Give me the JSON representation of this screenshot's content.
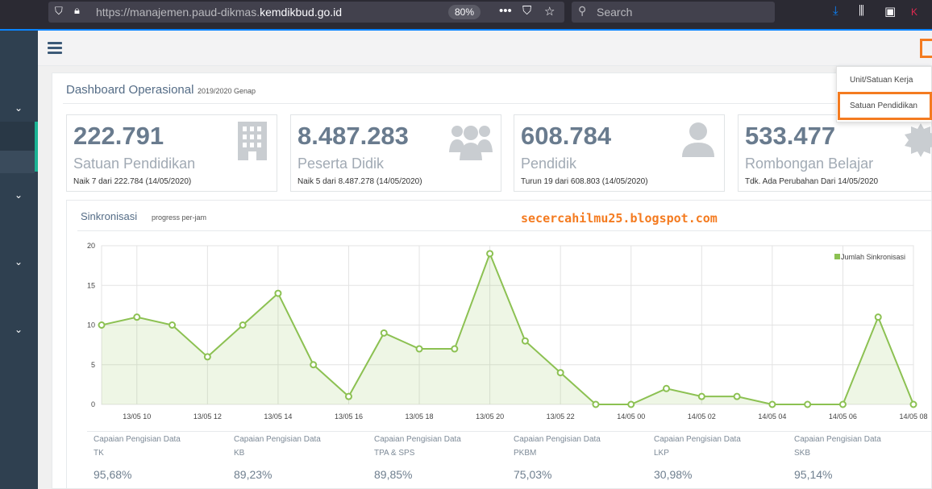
{
  "browser": {
    "url_prefix": "https://manajemen.paud-dikmas.",
    "url_domain": "kemdikbud.go.id",
    "zoom": "80%",
    "search_placeholder": "Search"
  },
  "dashboard": {
    "title": "Dashboard Operasional",
    "period": "2019/2020 Genap"
  },
  "cards": [
    {
      "value": "222.791",
      "label": "Satuan Pendidikan",
      "note": "Naik 7 dari 222.784 (14/05/2020)"
    },
    {
      "value": "8.487.283",
      "label": "Peserta Didik",
      "note": "Naik 5 dari 8.487.278 (14/05/2020)"
    },
    {
      "value": "608.784",
      "label": "Pendidik",
      "note": "Turun 19 dari 608.803 (14/05/2020)"
    },
    {
      "value": "533.477",
      "label": "Rombongan Belajar",
      "note": "Tdk. Ada Perubahan Dari 14/05/2020"
    }
  ],
  "dropdown": {
    "items": [
      "Unit/Satuan Kerja",
      "Satuan Pendidikan"
    ]
  },
  "sync": {
    "title": "Sinkronisasi",
    "subtitle": "progress per-jam",
    "watermark": "secercahilmu25.blogspot.com"
  },
  "chart_data": {
    "type": "area",
    "title": "Sinkronisasi",
    "ylim": [
      0,
      20
    ],
    "yticks": [
      "0",
      "5",
      "10",
      "15",
      "20"
    ],
    "xtick_labels": [
      "13/05 10",
      "13/05 12",
      "13/05 14",
      "13/05 16",
      "13/05 18",
      "13/05 20",
      "13/05 22",
      "14/05 00",
      "14/05 02",
      "14/05 04",
      "14/05 06",
      "14/05 08"
    ],
    "series": [
      {
        "name": "Jumlah Sinkronisasi",
        "color": "#8cc152",
        "values": [
          10,
          11,
          10,
          6,
          10,
          14,
          5,
          1,
          9,
          7,
          7,
          19,
          8,
          4,
          0,
          0,
          2,
          1,
          1,
          0,
          0,
          0,
          11,
          0
        ]
      }
    ]
  },
  "stats": [
    {
      "line1": "Capaian Pengisian Data",
      "line2": "TK",
      "pct": "95,68%"
    },
    {
      "line1": "Capaian Pengisian Data",
      "line2": "KB",
      "pct": "89,23%"
    },
    {
      "line1": "Capaian Pengisian Data",
      "line2": "TPA & SPS",
      "pct": "89,85%"
    },
    {
      "line1": "Capaian Pengisian Data",
      "line2": "PKBM",
      "pct": "75,03%"
    },
    {
      "line1": "Capaian Pengisian Data",
      "line2": "LKP",
      "pct": "30,98%"
    },
    {
      "line1": "Capaian Pengisian Data",
      "line2": "SKB",
      "pct": "95,14%"
    }
  ]
}
